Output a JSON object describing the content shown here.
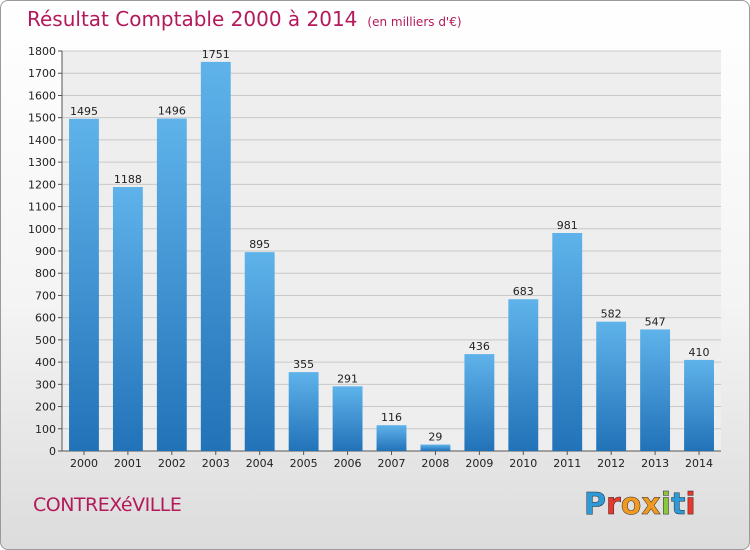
{
  "header": {
    "title": "Résultat Comptable 2000 à 2014",
    "subtitle": "(en milliers d'€)"
  },
  "footer": {
    "city": "CONTREXéVILLE",
    "logo_letters": [
      {
        "char": "P",
        "color": "#2e9ad8"
      },
      {
        "char": "r",
        "color": "#e8372c"
      },
      {
        "char": "o",
        "color": "#f29a1f"
      },
      {
        "char": "x",
        "color": "#f29a1f"
      },
      {
        "char": "i",
        "color": "#8dc63f"
      },
      {
        "char": "t",
        "color": "#2e9ad8"
      },
      {
        "char": "i",
        "color": "#e8372c"
      }
    ]
  },
  "colors": {
    "bar_light": "#5fb3ea",
    "bar_dark": "#2272b8",
    "title": "#b4195a"
  },
  "chart_data": {
    "type": "bar",
    "title": "Résultat Comptable 2000 à 2014",
    "subtitle": "(en milliers d'€)",
    "categories": [
      "2000",
      "2001",
      "2002",
      "2003",
      "2004",
      "2005",
      "2006",
      "2007",
      "2008",
      "2009",
      "2010",
      "2011",
      "2012",
      "2013",
      "2014"
    ],
    "values": [
      1495,
      1188,
      1496,
      1751,
      895,
      355,
      291,
      116,
      29,
      436,
      683,
      981,
      582,
      547,
      410
    ],
    "ylim": [
      0,
      1800
    ],
    "yticks": [
      0,
      100,
      200,
      300,
      400,
      500,
      600,
      700,
      800,
      900,
      1000,
      1100,
      1200,
      1300,
      1400,
      1500,
      1600,
      1700,
      1800
    ],
    "grid": true,
    "legend": "none"
  }
}
